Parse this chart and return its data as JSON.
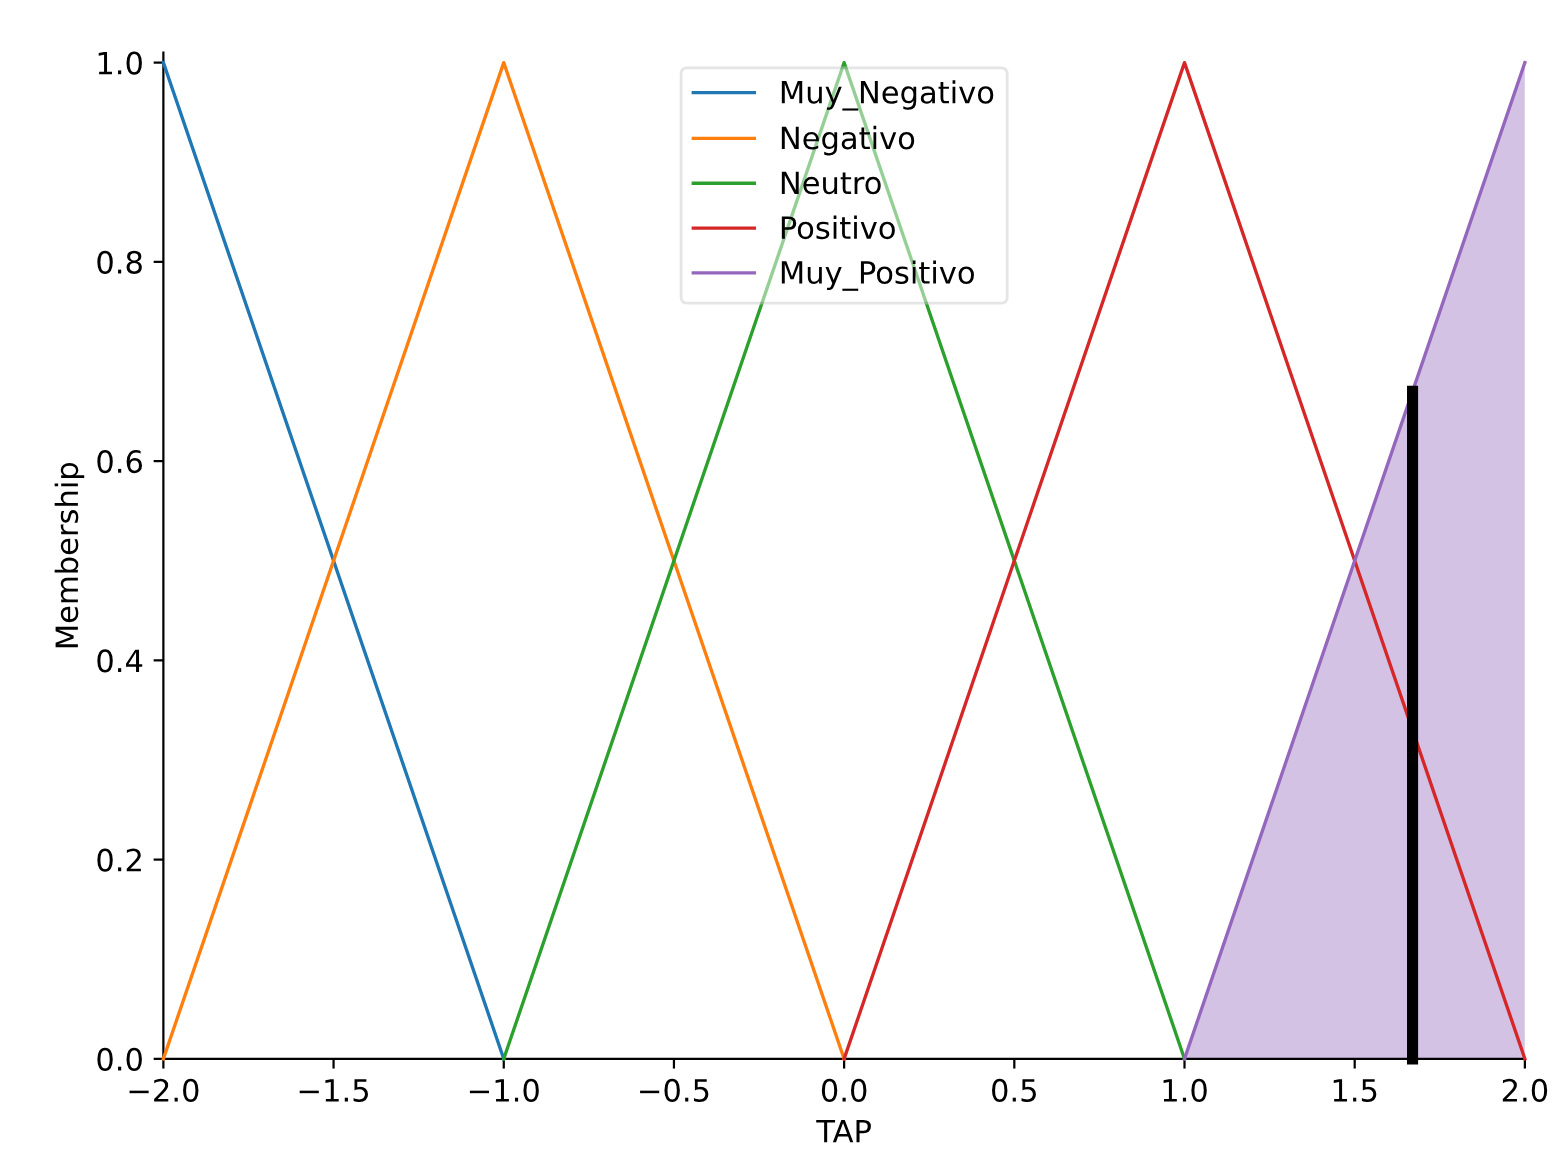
{
  "chart_data": {
    "type": "line",
    "xlabel": "TAP",
    "ylabel": "Membership",
    "xlim": [
      -2,
      2
    ],
    "ylim": [
      0,
      1.01
    ],
    "xticks": [
      {
        "value": -2,
        "label": "−2.0"
      },
      {
        "value": -1.5,
        "label": "−1.5"
      },
      {
        "value": -1,
        "label": "−1.0"
      },
      {
        "value": -0.5,
        "label": "−0.5"
      },
      {
        "value": 0,
        "label": "0.0"
      },
      {
        "value": 0.5,
        "label": "0.5"
      },
      {
        "value": 1,
        "label": "1.0"
      },
      {
        "value": 1.5,
        "label": "1.5"
      },
      {
        "value": 2,
        "label": "2.0"
      }
    ],
    "yticks": [
      {
        "value": 0,
        "label": "0.0"
      },
      {
        "value": 0.2,
        "label": "0.2"
      },
      {
        "value": 0.4,
        "label": "0.4"
      },
      {
        "value": 0.6,
        "label": "0.6"
      },
      {
        "value": 0.8,
        "label": "0.8"
      },
      {
        "value": 1,
        "label": "1.0"
      }
    ],
    "legend": "top",
    "grid": false,
    "series": [
      {
        "name": "Muy_Negativo",
        "color": "#1f77b4",
        "x": [
          -2,
          -1
        ],
        "values": [
          1,
          0
        ]
      },
      {
        "name": "Negativo",
        "color": "#ff7f0e",
        "x": [
          -2,
          -1,
          0
        ],
        "values": [
          0,
          1,
          0
        ]
      },
      {
        "name": "Neutro",
        "color": "#2ca02c",
        "x": [
          -1,
          0,
          1
        ],
        "values": [
          0,
          1,
          0
        ]
      },
      {
        "name": "Positivo",
        "color": "#d62728",
        "x": [
          0,
          1,
          2
        ],
        "values": [
          0,
          1,
          0
        ]
      },
      {
        "name": "Muy_Positivo",
        "color": "#9467bd",
        "type": "area",
        "x": [
          1,
          2
        ],
        "values": [
          0,
          1
        ]
      },
      {
        "color": "#000000",
        "x": [
          1.67,
          1.67
        ],
        "values": [
          0,
          0.67
        ]
      }
    ]
  }
}
